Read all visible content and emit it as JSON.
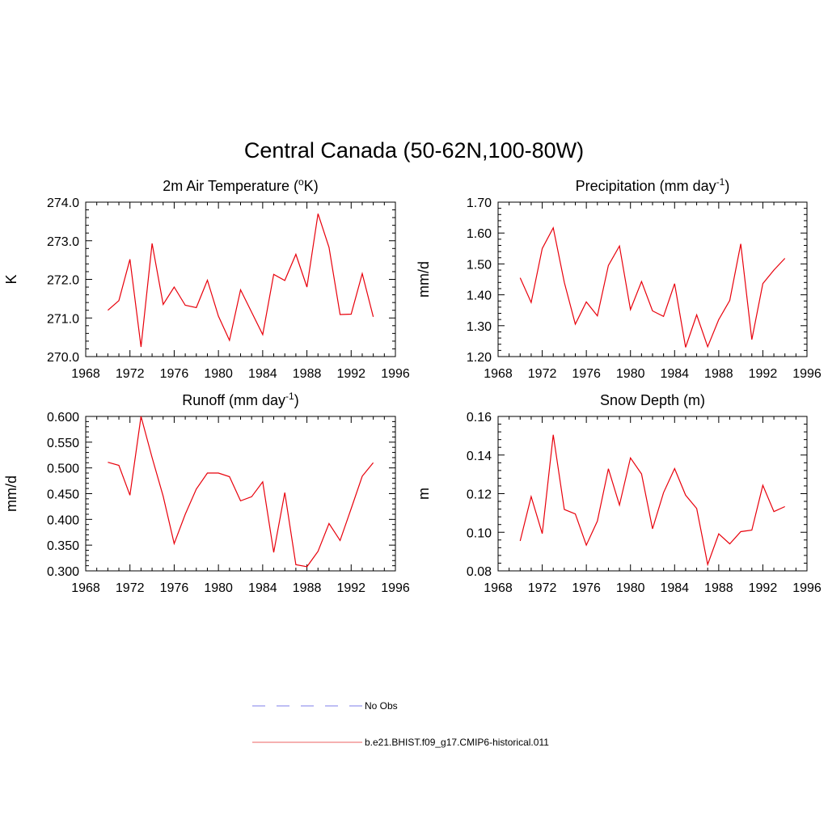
{
  "figure": {
    "title": "Central Canada (50-62N,100-80W)",
    "line_color": "#e8000b",
    "obs_color": "#9999ee"
  },
  "legend": {
    "obs_label": "No Obs",
    "model_label": "b.e21.BHIST.f09_g17.CMIP6-historical.011"
  },
  "chart_data": [
    {
      "type": "line",
      "title": "2m Air Temperature (",
      "title_sup": "o",
      "title_post": "K)",
      "ylabel": "K",
      "xlim": [
        1968,
        1996
      ],
      "ylim": [
        270.0,
        274.0
      ],
      "xticks": [
        1968,
        1972,
        1976,
        1980,
        1984,
        1988,
        1992,
        1996
      ],
      "yticks": [
        "270.0",
        "271.0",
        "272.0",
        "273.0",
        "274.0"
      ],
      "x": [
        1970,
        1971,
        1972,
        1973,
        1974,
        1975,
        1976,
        1977,
        1978,
        1979,
        1980,
        1981,
        1982,
        1983,
        1984,
        1985,
        1986,
        1987,
        1988,
        1989,
        1990,
        1991,
        1992,
        1993,
        1994
      ],
      "values": [
        271.2,
        271.45,
        272.52,
        270.25,
        272.93,
        271.35,
        271.8,
        271.33,
        271.27,
        271.98,
        271.05,
        270.42,
        271.73,
        271.15,
        270.57,
        272.13,
        271.97,
        272.65,
        271.8,
        273.7,
        272.83,
        271.09,
        271.1,
        272.15,
        271.03
      ]
    },
    {
      "type": "line",
      "title": "Precipitation (mm day",
      "title_sup": "-1",
      "title_post": ")",
      "ylabel": "mm/d",
      "xlim": [
        1968,
        1996
      ],
      "ylim": [
        1.2,
        1.7
      ],
      "xticks": [
        1968,
        1972,
        1976,
        1980,
        1984,
        1988,
        1992,
        1996
      ],
      "yticks": [
        "1.20",
        "1.30",
        "1.40",
        "1.50",
        "1.60",
        "1.70"
      ],
      "x": [
        1970,
        1971,
        1972,
        1973,
        1974,
        1975,
        1976,
        1977,
        1978,
        1979,
        1980,
        1981,
        1982,
        1983,
        1984,
        1985,
        1986,
        1987,
        1988,
        1989,
        1990,
        1991,
        1992,
        1993,
        1994
      ],
      "values": [
        1.455,
        1.375,
        1.55,
        1.617,
        1.44,
        1.305,
        1.377,
        1.332,
        1.495,
        1.558,
        1.352,
        1.443,
        1.348,
        1.33,
        1.436,
        1.23,
        1.335,
        1.232,
        1.32,
        1.382,
        1.565,
        1.255,
        1.436,
        1.48,
        1.518
      ]
    },
    {
      "type": "line",
      "title": "Runoff (mm day",
      "title_sup": "-1",
      "title_post": ")",
      "ylabel": "mm/d",
      "xlim": [
        1968,
        1996
      ],
      "ylim": [
        0.3,
        0.6
      ],
      "xticks": [
        1968,
        1972,
        1976,
        1980,
        1984,
        1988,
        1992,
        1996
      ],
      "yticks": [
        "0.300",
        "0.350",
        "0.400",
        "0.450",
        "0.500",
        "0.550",
        "0.600"
      ],
      "x": [
        1970,
        1971,
        1972,
        1973,
        1974,
        1975,
        1976,
        1977,
        1978,
        1979,
        1980,
        1981,
        1982,
        1983,
        1984,
        1985,
        1986,
        1987,
        1988,
        1989,
        1990,
        1991,
        1992,
        1993,
        1994
      ],
      "values": [
        0.511,
        0.505,
        0.447,
        0.6,
        0.52,
        0.445,
        0.353,
        0.41,
        0.459,
        0.49,
        0.49,
        0.483,
        0.436,
        0.444,
        0.473,
        0.336,
        0.452,
        0.312,
        0.308,
        0.338,
        0.392,
        0.359,
        0.421,
        0.484,
        0.51
      ]
    },
    {
      "type": "line",
      "title": "Snow Depth (m)",
      "title_sup": "",
      "title_post": "",
      "ylabel": "m",
      "xlim": [
        1968,
        1996
      ],
      "ylim": [
        0.08,
        0.16
      ],
      "xticks": [
        1968,
        1972,
        1976,
        1980,
        1984,
        1988,
        1992,
        1996
      ],
      "yticks": [
        "0.08",
        "0.10",
        "0.12",
        "0.14",
        "0.16"
      ],
      "x": [
        1970,
        1971,
        1972,
        1973,
        1974,
        1975,
        1976,
        1977,
        1978,
        1979,
        1980,
        1981,
        1982,
        1983,
        1984,
        1985,
        1986,
        1987,
        1988,
        1989,
        1990,
        1991,
        1992,
        1993,
        1994
      ],
      "values": [
        0.0955,
        0.1185,
        0.0993,
        0.1505,
        0.1118,
        0.1095,
        0.0933,
        0.1058,
        0.1329,
        0.1141,
        0.1385,
        0.1302,
        0.1018,
        0.1205,
        0.133,
        0.1192,
        0.1123,
        0.0833,
        0.0992,
        0.094,
        0.1003,
        0.1011,
        0.1243,
        0.1107,
        0.1133
      ]
    }
  ]
}
